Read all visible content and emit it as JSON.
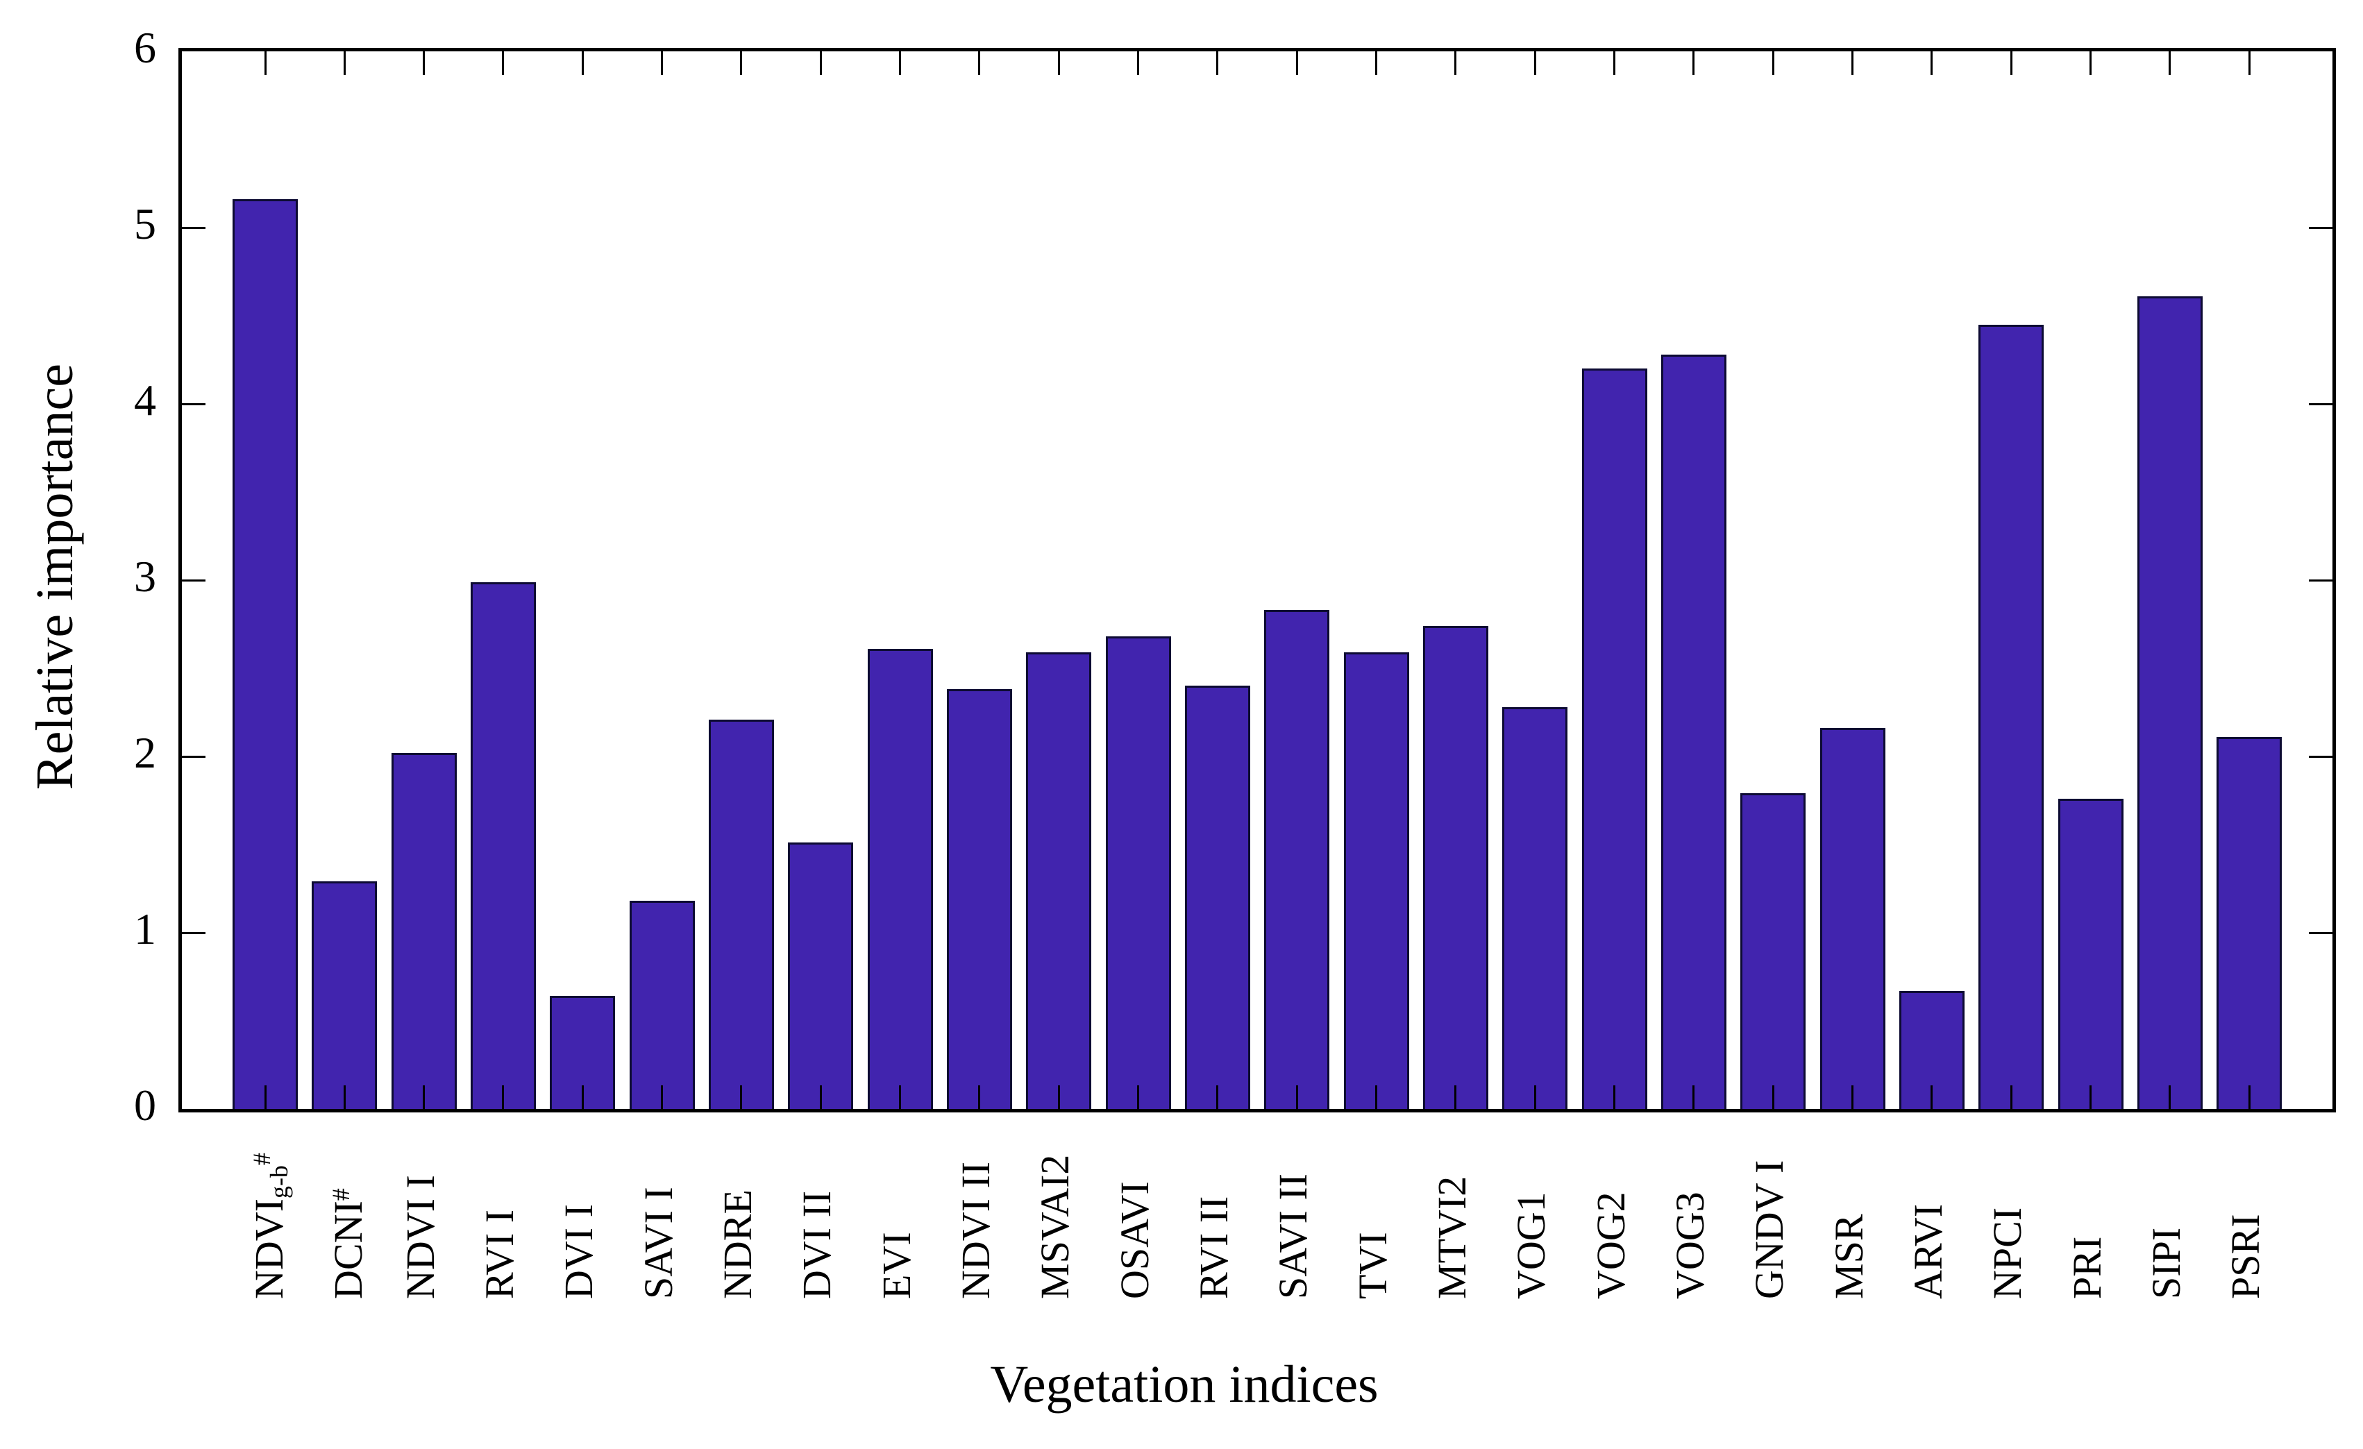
{
  "chart_data": {
    "type": "bar",
    "title": "",
    "ylabel": "Relative importance",
    "xlabel": "Vegetation indices",
    "ylim": [
      0,
      6
    ],
    "yticks": [
      0,
      1,
      2,
      3,
      4,
      5,
      6
    ],
    "grid": false,
    "legend": false,
    "bar_fill_color": "#4124ae",
    "bar_edge_color": "#0d0b33",
    "axis_color": "#000000",
    "background_color": "#ffffff",
    "categories": [
      {
        "label": "NDVI",
        "sub": "g-b",
        "sup": "#"
      },
      {
        "label": "DCNI",
        "sup": "#"
      },
      {
        "label": "NDVI I"
      },
      {
        "label": "RVI I"
      },
      {
        "label": "DVI I"
      },
      {
        "label": "SAVI I"
      },
      {
        "label": "NDRE"
      },
      {
        "label": "DVI II"
      },
      {
        "label": "EVI"
      },
      {
        "label": "NDVI II"
      },
      {
        "label": "MSVAI2"
      },
      {
        "label": "OSAVI"
      },
      {
        "label": "RVI II"
      },
      {
        "label": "SAVI II"
      },
      {
        "label": "TVI"
      },
      {
        "label": "MTVI2"
      },
      {
        "label": "VOG1"
      },
      {
        "label": "VOG2"
      },
      {
        "label": "VOG3"
      },
      {
        "label": "GNDV I"
      },
      {
        "label": "MSR"
      },
      {
        "label": "ARVI"
      },
      {
        "label": "NPCI"
      },
      {
        "label": "PRI"
      },
      {
        "label": "SIPI"
      },
      {
        "label": "PSRI"
      }
    ],
    "values": [
      5.16,
      1.29,
      2.02,
      2.99,
      0.64,
      1.18,
      2.21,
      1.51,
      2.61,
      2.38,
      2.59,
      2.68,
      2.4,
      2.83,
      2.59,
      2.74,
      2.28,
      4.2,
      4.28,
      1.79,
      2.16,
      0.67,
      4.45,
      1.76,
      4.61,
      2.11
    ]
  }
}
